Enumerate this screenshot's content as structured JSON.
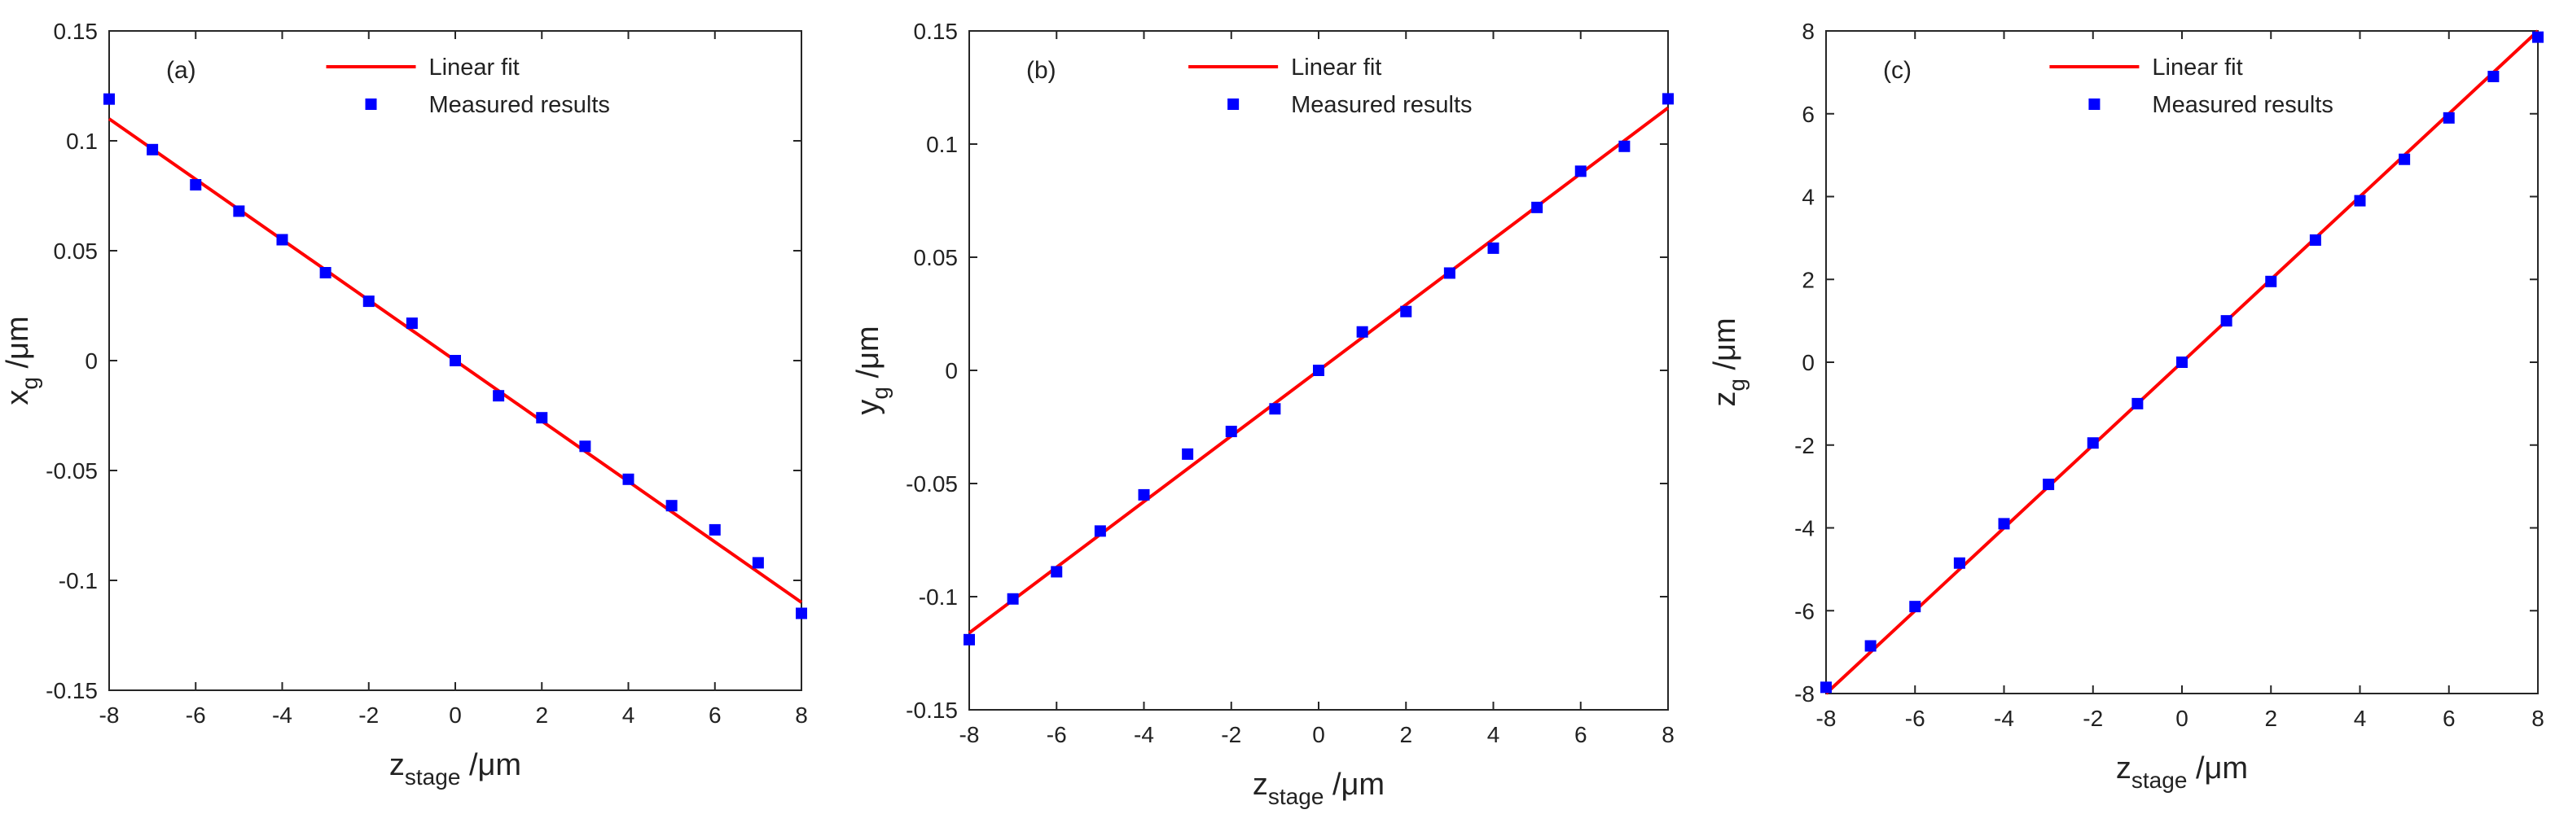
{
  "chart_data": [
    {
      "type": "scatter",
      "panel_label": "(a)",
      "xlabel": {
        "main": "z",
        "sub": "stage",
        "unit": " /μm"
      },
      "ylabel": {
        "main": "x",
        "sub": "g",
        "unit": " /μm"
      },
      "xlim": [
        -8,
        8
      ],
      "ylim": [
        -0.15,
        0.15
      ],
      "xticks": [
        -8,
        -6,
        -4,
        -2,
        0,
        2,
        4,
        6,
        8
      ],
      "xtick_labels": [
        "-8",
        "-6",
        "-4",
        "-2",
        "0",
        "2",
        "4",
        "6",
        "8"
      ],
      "yticks": [
        -0.15,
        -0.1,
        -0.05,
        0,
        0.05,
        0.1,
        0.15
      ],
      "ytick_labels": [
        "-0.15",
        "-0.1",
        "-0.05",
        "0",
        "0.05",
        "0.1",
        "0.15"
      ],
      "legend": [
        "Linear fit",
        "Measured results"
      ],
      "legend_position": "top-center",
      "series": [
        {
          "name": "Linear fit",
          "kind": "line",
          "color": "#ff0000",
          "x": [
            -8,
            8
          ],
          "y": [
            0.11,
            -0.11
          ]
        },
        {
          "name": "Measured results",
          "kind": "marker",
          "color": "#0000ff",
          "x": [
            -8,
            -7,
            -6,
            -5,
            -4,
            -3,
            -2,
            -1,
            0,
            1,
            2,
            3,
            4,
            5,
            6,
            7,
            8
          ],
          "y": [
            0.119,
            0.096,
            0.08,
            0.068,
            0.055,
            0.04,
            0.027,
            0.017,
            0.0,
            -0.016,
            -0.026,
            -0.039,
            -0.054,
            -0.066,
            -0.077,
            -0.092,
            -0.115
          ]
        }
      ]
    },
    {
      "type": "scatter",
      "panel_label": "(b)",
      "xlabel": {
        "main": "z",
        "sub": "stage",
        "unit": " /μm"
      },
      "ylabel": {
        "main": "y",
        "sub": "g",
        "unit": " /μm"
      },
      "xlim": [
        -8,
        8
      ],
      "ylim": [
        -0.15,
        0.15
      ],
      "xticks": [
        -8,
        -6,
        -4,
        -2,
        0,
        2,
        4,
        6,
        8
      ],
      "xtick_labels": [
        "-8",
        "-6",
        "-4",
        "-2",
        "0",
        "2",
        "4",
        "6",
        "8"
      ],
      "yticks": [
        -0.15,
        -0.1,
        -0.05,
        0,
        0.05,
        0.1,
        0.15
      ],
      "ytick_labels": [
        "-0.15",
        "-0.1",
        "-0.05",
        "0",
        "0.05",
        "0.1",
        "0.15"
      ],
      "legend": [
        "Linear fit",
        "Measured results"
      ],
      "legend_position": "top-center",
      "series": [
        {
          "name": "Linear fit",
          "kind": "line",
          "color": "#ff0000",
          "x": [
            -8,
            8
          ],
          "y": [
            -0.116,
            0.116
          ]
        },
        {
          "name": "Measured results",
          "kind": "marker",
          "color": "#0000ff",
          "x": [
            -8,
            -7,
            -6,
            -5,
            -4,
            -3,
            -2,
            -1,
            0,
            1,
            2,
            3,
            4,
            5,
            6,
            7,
            8
          ],
          "y": [
            -0.119,
            -0.101,
            -0.089,
            -0.071,
            -0.055,
            -0.037,
            -0.027,
            -0.017,
            0.0,
            0.017,
            0.026,
            0.043,
            0.054,
            0.072,
            0.088,
            0.099,
            0.12
          ]
        }
      ]
    },
    {
      "type": "scatter",
      "panel_label": "(c)",
      "xlabel": {
        "main": "z",
        "sub": "stage",
        "unit": " /μm"
      },
      "ylabel": {
        "main": "z",
        "sub": "g",
        "unit": " /μm"
      },
      "xlim": [
        -8,
        8
      ],
      "ylim": [
        -8,
        8
      ],
      "xticks": [
        -8,
        -6,
        -4,
        -2,
        0,
        2,
        4,
        6,
        8
      ],
      "xtick_labels": [
        "-8",
        "-6",
        "-4",
        "-2",
        "0",
        "2",
        "4",
        "6",
        "8"
      ],
      "yticks": [
        -8,
        -6,
        -4,
        -2,
        0,
        2,
        4,
        6,
        8
      ],
      "ytick_labels": [
        "-8",
        "-6",
        "-4",
        "-2",
        "0",
        "2",
        "4",
        "6",
        "8"
      ],
      "legend": [
        "Linear fit",
        "Measured results"
      ],
      "legend_position": "top-center",
      "series": [
        {
          "name": "Linear fit",
          "kind": "line",
          "color": "#ff0000",
          "x": [
            -8,
            8
          ],
          "y": [
            -8,
            8
          ]
        },
        {
          "name": "Measured results",
          "kind": "marker",
          "color": "#0000ff",
          "x": [
            -8,
            -7,
            -6,
            -5,
            -4,
            -3,
            -2,
            -1,
            0,
            1,
            2,
            3,
            4,
            5,
            6,
            7,
            8
          ],
          "y": [
            -7.85,
            -6.85,
            -5.9,
            -4.85,
            -3.9,
            -2.95,
            -1.95,
            -1.0,
            0.0,
            1.0,
            1.95,
            2.95,
            3.9,
            4.9,
            5.9,
            6.9,
            7.85
          ]
        }
      ]
    }
  ]
}
